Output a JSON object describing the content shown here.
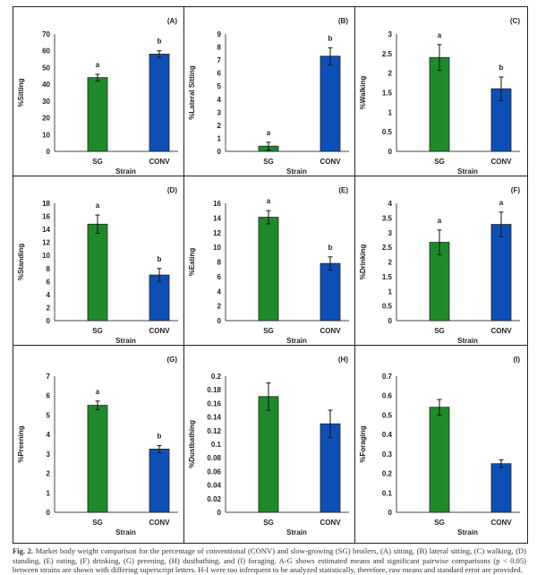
{
  "chart_data": [
    {
      "type": "bar",
      "panel_label": "(A)",
      "ylabel": "%Sitting",
      "xlabel": "Strain",
      "categories": [
        "SG",
        "CONV"
      ],
      "values": [
        44,
        58
      ],
      "errors": [
        2,
        2
      ],
      "letters": [
        "a",
        "b"
      ],
      "ylim": [
        0,
        70
      ],
      "yticks": [
        "0",
        "10",
        "20",
        "30",
        "40",
        "50",
        "60",
        "70"
      ],
      "colors": [
        "#1e8a2a",
        "#0d4fb5"
      ],
      "grid": false
    },
    {
      "type": "bar",
      "panel_label": "(B)",
      "ylabel": "%Lateral Sitting",
      "xlabel": "Strain",
      "categories": [
        "SG",
        "CONV"
      ],
      "values": [
        0.4,
        7.3
      ],
      "errors": [
        0.3,
        0.65
      ],
      "letters": [
        "a",
        "b"
      ],
      "ylim": [
        0,
        9
      ],
      "yticks": [
        "0",
        "1",
        "2",
        "3",
        "4",
        "5",
        "6",
        "7",
        "8",
        "9"
      ],
      "colors": [
        "#1e8a2a",
        "#0d4fb5"
      ],
      "grid": false
    },
    {
      "type": "bar",
      "panel_label": "(C)",
      "ylabel": "%Walking",
      "xlabel": "Strain",
      "categories": [
        "SG",
        "CONV"
      ],
      "values": [
        2.4,
        1.6
      ],
      "errors": [
        0.33,
        0.3
      ],
      "letters": [
        "a",
        "b"
      ],
      "ylim": [
        0,
        3
      ],
      "yticks": [
        "0",
        "0.5",
        "1",
        "1.5",
        "2",
        "2.5",
        "3"
      ],
      "colors": [
        "#1e8a2a",
        "#0d4fb5"
      ],
      "grid": false
    },
    {
      "type": "bar",
      "panel_label": "(D)",
      "ylabel": "%Standing",
      "xlabel": "Strain",
      "categories": [
        "SG",
        "CONV"
      ],
      "values": [
        14.8,
        7.0
      ],
      "errors": [
        1.4,
        1.0
      ],
      "letters": [
        "a",
        "b"
      ],
      "ylim": [
        0,
        18
      ],
      "yticks": [
        "0",
        "2",
        "4",
        "6",
        "8",
        "10",
        "12",
        "14",
        "16",
        "18"
      ],
      "colors": [
        "#1e8a2a",
        "#0d4fb5"
      ],
      "grid": false
    },
    {
      "type": "bar",
      "panel_label": "(E)",
      "ylabel": "%Eating",
      "xlabel": "Strain",
      "categories": [
        "SG",
        "CONV"
      ],
      "values": [
        14.1,
        7.8
      ],
      "errors": [
        0.9,
        0.9
      ],
      "letters": [
        "a",
        "b"
      ],
      "ylim": [
        0,
        16
      ],
      "yticks": [
        "0",
        "2",
        "4",
        "6",
        "8",
        "10",
        "12",
        "14",
        "16"
      ],
      "colors": [
        "#1e8a2a",
        "#0d4fb5"
      ],
      "grid": false
    },
    {
      "type": "bar",
      "panel_label": "(F)",
      "ylabel": "%Drinking",
      "xlabel": "Strain",
      "categories": [
        "SG",
        "CONV"
      ],
      "values": [
        2.67,
        3.28
      ],
      "errors": [
        0.42,
        0.42
      ],
      "letters": [
        "a",
        "a"
      ],
      "ylim": [
        0,
        4
      ],
      "yticks": [
        "0",
        "0.5",
        "1",
        "1.5",
        "2",
        "2.5",
        "3",
        "3.5",
        "4"
      ],
      "colors": [
        "#1e8a2a",
        "#0d4fb5"
      ],
      "grid": false
    },
    {
      "type": "bar",
      "panel_label": "(G)",
      "ylabel": "%Preening",
      "xlabel": "Strain",
      "categories": [
        "SG",
        "CONV"
      ],
      "values": [
        5.5,
        3.25
      ],
      "errors": [
        0.22,
        0.18
      ],
      "letters": [
        "a",
        "b"
      ],
      "ylim": [
        0,
        7
      ],
      "yticks": [
        "0",
        "1",
        "2",
        "3",
        "4",
        "5",
        "6",
        "7"
      ],
      "colors": [
        "#1e8a2a",
        "#0d4fb5"
      ],
      "grid": false
    },
    {
      "type": "bar",
      "panel_label": "(H)",
      "ylabel": "%Dustbathing",
      "xlabel": "Strain",
      "categories": [
        "SG",
        "CONV"
      ],
      "values": [
        0.17,
        0.13
      ],
      "errors": [
        0.02,
        0.02
      ],
      "letters": [
        "",
        ""
      ],
      "ylim": [
        0,
        0.2
      ],
      "yticks": [
        "0",
        "0.02",
        "0.04",
        "0.06",
        "0.08",
        "0.1",
        "0.12",
        "0.14",
        "0.16",
        "0.18",
        "0.2"
      ],
      "colors": [
        "#1e8a2a",
        "#0d4fb5"
      ],
      "grid": false
    },
    {
      "type": "bar",
      "panel_label": "(I)",
      "ylabel": "%Foraging",
      "xlabel": "Strain",
      "categories": [
        "SG",
        "CONV"
      ],
      "values": [
        0.54,
        0.25
      ],
      "errors": [
        0.04,
        0.02
      ],
      "letters": [
        "",
        ""
      ],
      "ylim": [
        0,
        0.7
      ],
      "yticks": [
        "0",
        "0.1",
        "0.2",
        "0.3",
        "0.4",
        "0.5",
        "0.6",
        "0.7"
      ],
      "colors": [
        "#1e8a2a",
        "#0d4fb5"
      ],
      "grid": false
    }
  ],
  "caption": {
    "label": "Fig. 2.",
    "text": "Market body weight comparison for the percentage of conventional (CONV) and slow-growing (SG) broilers, (A) sitting, (B) lateral sitting, (C) walking, (D) standing, (E) eating, (F) drinking, (G) preening, (H) dustbathing, and (I) foraging. A-G shows estimated means and significant pairwise comparisons (p < 0.05) between strains are shown with differing superscript letters. H-I were too infrequent to be analyzed statistically, therefore, raw means and standard error are provided."
  }
}
